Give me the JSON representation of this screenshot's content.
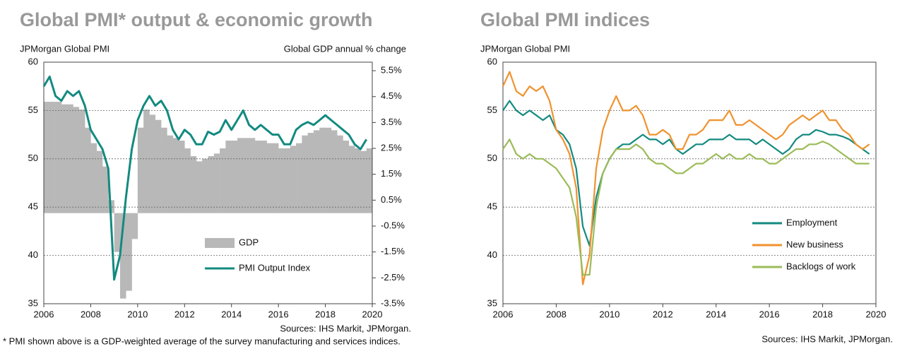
{
  "chart_data": [
    {
      "type": "combo",
      "title": "Global PMI* output & economic growth",
      "y_label": "JPMorgan Global PMI",
      "y2_label": "Global GDP annual % change",
      "source": "Sources: IHS Markit, JPMorgan.",
      "footnote": "* PMI shown above is a GDP-weighted average of the survey manufacturing and services indices.",
      "x": [
        2006,
        2006.25,
        2006.5,
        2006.75,
        2007,
        2007.25,
        2007.5,
        2007.75,
        2008,
        2008.25,
        2008.5,
        2008.75,
        2009,
        2009.25,
        2009.5,
        2009.75,
        2010,
        2010.25,
        2010.5,
        2010.75,
        2011,
        2011.25,
        2011.5,
        2011.75,
        2012,
        2012.25,
        2012.5,
        2012.75,
        2013,
        2013.25,
        2013.5,
        2013.75,
        2014,
        2014.25,
        2014.5,
        2014.75,
        2015,
        2015.25,
        2015.5,
        2015.75,
        2016,
        2016.25,
        2016.5,
        2016.75,
        2017,
        2017.25,
        2017.5,
        2017.75,
        2018,
        2018.25,
        2018.5,
        2018.75,
        2019,
        2019.25,
        2019.5,
        2019.75
      ],
      "xlim": [
        2006,
        2020
      ],
      "xticks": [
        2006,
        2008,
        2010,
        2012,
        2014,
        2016,
        2018,
        2020
      ],
      "ylim": [
        35,
        60
      ],
      "yticks": [
        35,
        40,
        45,
        50,
        55,
        60
      ],
      "y2lim": [
        -3.5,
        5.83
      ],
      "y2ticks": [
        {
          "value": -3.5,
          "label": "-3.5%"
        },
        {
          "value": -2.5,
          "label": "-2.5%"
        },
        {
          "value": -1.5,
          "label": "-1.5%"
        },
        {
          "value": -0.5,
          "label": "-0.5%"
        },
        {
          "value": 0.5,
          "label": "0.5%"
        },
        {
          "value": 1.5,
          "label": "1.5%"
        },
        {
          "value": 2.5,
          "label": "2.5%"
        },
        {
          "value": 3.5,
          "label": "3.5%"
        },
        {
          "value": 4.5,
          "label": "4.5%"
        },
        {
          "value": 5.5,
          "label": "5.5%"
        }
      ],
      "grid": true,
      "series": [
        {
          "name": "GDP",
          "type": "bar",
          "axis": "y2",
          "color": "#b8b8b8",
          "values": [
            4.3,
            4.3,
            4.3,
            4.2,
            4.2,
            4.1,
            4.0,
            3.3,
            2.7,
            2.4,
            1.8,
            0.5,
            -1.5,
            -3.3,
            -3.0,
            -1.0,
            3.3,
            4.0,
            3.8,
            3.6,
            3.3,
            3.0,
            2.9,
            2.8,
            2.5,
            2.2,
            2.0,
            2.1,
            2.2,
            2.3,
            2.5,
            2.8,
            2.8,
            2.9,
            2.9,
            2.9,
            2.8,
            2.8,
            2.7,
            2.7,
            2.5,
            2.5,
            2.6,
            2.7,
            3.0,
            3.1,
            3.2,
            3.3,
            3.3,
            3.2,
            3.0,
            2.8,
            2.6,
            2.5,
            2.4,
            2.5
          ]
        },
        {
          "name": "PMI Output Index",
          "type": "line",
          "color": "#138a80",
          "values": [
            57.5,
            58.5,
            56.5,
            56.0,
            57.0,
            56.5,
            57.0,
            55.5,
            53.0,
            52.0,
            51.0,
            49.0,
            37.5,
            40.0,
            46.0,
            51.0,
            54.0,
            55.5,
            56.5,
            55.5,
            56.0,
            55.0,
            53.0,
            52.0,
            53.0,
            52.5,
            51.5,
            51.5,
            52.8,
            52.5,
            52.8,
            54.0,
            53.0,
            54.0,
            55.0,
            53.5,
            53.0,
            53.5,
            53.0,
            52.5,
            52.5,
            51.5,
            51.5,
            53.0,
            53.5,
            53.8,
            53.5,
            54.0,
            54.5,
            54.0,
            53.5,
            53.0,
            52.5,
            51.5,
            51.0,
            52.0
          ]
        }
      ]
    },
    {
      "type": "line",
      "title": "Global PMI indices",
      "y_label": "JPMorgan Global PMI",
      "source": "Sources: IHS Markit, JPMorgan.",
      "x": [
        2006,
        2006.25,
        2006.5,
        2006.75,
        2007,
        2007.25,
        2007.5,
        2007.75,
        2008,
        2008.25,
        2008.5,
        2008.75,
        2009,
        2009.25,
        2009.5,
        2009.75,
        2010,
        2010.25,
        2010.5,
        2010.75,
        2011,
        2011.25,
        2011.5,
        2011.75,
        2012,
        2012.25,
        2012.5,
        2012.75,
        2013,
        2013.25,
        2013.5,
        2013.75,
        2014,
        2014.25,
        2014.5,
        2014.75,
        2015,
        2015.25,
        2015.5,
        2015.75,
        2016,
        2016.25,
        2016.5,
        2016.75,
        2017,
        2017.25,
        2017.5,
        2017.75,
        2018,
        2018.25,
        2018.5,
        2018.75,
        2019,
        2019.25,
        2019.5,
        2019.75
      ],
      "xlim": [
        2006,
        2020
      ],
      "xticks": [
        2006,
        2008,
        2010,
        2012,
        2014,
        2016,
        2018,
        2020
      ],
      "ylim": [
        35,
        60
      ],
      "yticks": [
        35,
        40,
        45,
        50,
        55,
        60
      ],
      "grid": true,
      "series": [
        {
          "name": "Employment",
          "color": "#138a80",
          "values": [
            55,
            56,
            55,
            54.5,
            55,
            54.5,
            54,
            54.5,
            53,
            52.5,
            51.5,
            49,
            43,
            41,
            46,
            48.5,
            50,
            51,
            51.5,
            51.5,
            52,
            52.5,
            52,
            52,
            51.5,
            52,
            51,
            50.5,
            51,
            51.5,
            51.5,
            52,
            52,
            52,
            52.5,
            52,
            52,
            52,
            51.5,
            52,
            51.5,
            51,
            50.5,
            51,
            52,
            52.5,
            52.5,
            53,
            52.8,
            52.5,
            52.5,
            52.3,
            52,
            51.5,
            51,
            50.5
          ]
        },
        {
          "name": "New business",
          "color": "#f0922e",
          "values": [
            57.5,
            59,
            57,
            56.5,
            57.5,
            57,
            57.5,
            56,
            53,
            52,
            50.5,
            47,
            37,
            40,
            49,
            53,
            55,
            56.5,
            55,
            55,
            55.5,
            54.5,
            52.5,
            52.5,
            53,
            52.5,
            51,
            51,
            52.5,
            52.5,
            53,
            54,
            54,
            54,
            55,
            53.5,
            53.5,
            54,
            53.5,
            53,
            52.5,
            52,
            52.5,
            53.5,
            54,
            54.5,
            54,
            54.5,
            55,
            54,
            54,
            53,
            52.5,
            51.5,
            51,
            51.5
          ]
        },
        {
          "name": "Backlogs of work",
          "color": "#9bbb59",
          "values": [
            51,
            52,
            50.5,
            50,
            50.5,
            50,
            50,
            49.5,
            49,
            48,
            47,
            44,
            38,
            38,
            45,
            48.5,
            50,
            51,
            51,
            51,
            51.5,
            51,
            50,
            49.5,
            49.5,
            49,
            48.5,
            48.5,
            49,
            49.5,
            49.5,
            50,
            50.5,
            50,
            50.5,
            50,
            50,
            50.5,
            50,
            50,
            49.5,
            49.5,
            50,
            50.5,
            51,
            51,
            51.5,
            51.5,
            51.8,
            51.5,
            51,
            50.5,
            50,
            49.5,
            49.5,
            49.5
          ]
        }
      ]
    }
  ]
}
